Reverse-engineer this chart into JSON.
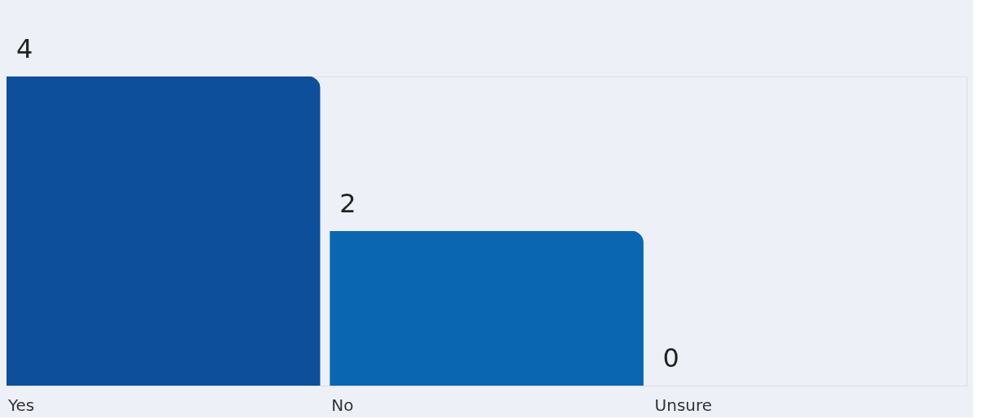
{
  "chart_data": {
    "type": "bar",
    "categories": [
      "Yes",
      "No",
      "Unsure"
    ],
    "values": [
      4,
      2,
      0
    ],
    "colors": [
      "#0d4f9b",
      "#0a66b0",
      "#1a5cb5"
    ],
    "data_labels": true,
    "grid": false
  }
}
